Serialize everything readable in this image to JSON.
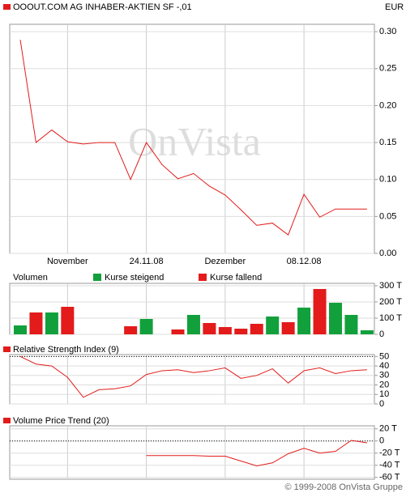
{
  "chart_data": [
    {
      "type": "line",
      "title": "OOOUT.COM AG INHABER-AKTIEN SF -,01",
      "unit": "EUR",
      "watermark": "OnVista",
      "color": "#e31b1b",
      "categories": [
        null,
        null,
        null,
        "November",
        null,
        null,
        null,
        null,
        "24.11.08",
        null,
        null,
        null,
        null,
        "Dezember",
        null,
        null,
        null,
        null,
        "08.12.08",
        null,
        null,
        null,
        null
      ],
      "values": [
        0.289,
        0.15,
        0.167,
        0.151,
        0.148,
        0.15,
        0.15,
        0.1,
        0.15,
        0.12,
        0.101,
        0.108,
        0.091,
        0.079,
        0.059,
        0.038,
        0.041,
        0.025,
        0.08,
        0.049,
        0.06,
        0.06,
        0.06
      ],
      "ylim": [
        0,
        0.31
      ],
      "yticks": [
        {
          "value": 0,
          "label": "0.00"
        },
        0.05,
        {
          "value": 0.1,
          "label": "0.10"
        },
        0.15,
        {
          "value": 0.2,
          "label": "0.20"
        },
        0.25,
        {
          "value": 0.3,
          "label": "0.30"
        }
      ],
      "grid": true
    },
    {
      "type": "bar",
      "title": "Volumen",
      "series": [
        {
          "name": "Kurse steigend",
          "color": "#12a03c",
          "values": [
            55,
            null,
            135,
            null,
            null,
            null,
            null,
            null,
            95,
            null,
            null,
            120,
            null,
            null,
            null,
            null,
            110,
            null,
            165,
            null,
            195,
            120,
            25
          ]
        },
        {
          "name": "Kurse fallend",
          "color": "#e31b1b",
          "values": [
            null,
            135,
            null,
            170,
            null,
            null,
            null,
            50,
            null,
            null,
            30,
            null,
            70,
            45,
            35,
            65,
            null,
            75,
            null,
            280,
            null,
            null,
            null
          ]
        }
      ],
      "ylim": [
        0,
        315
      ],
      "yticks": [
        0,
        {
          "value": 100,
          "label": "100 T"
        },
        {
          "value": 200,
          "label": "200 T"
        },
        {
          "value": 300,
          "label": "300 T"
        }
      ],
      "grid": true
    },
    {
      "type": "line",
      "title": "Relative Strength Index (9)",
      "color": "#e31b1b",
      "values": [
        50,
        42,
        40,
        28,
        7,
        15,
        16,
        19,
        31,
        35,
        36,
        33,
        35,
        38,
        27,
        30,
        37,
        22,
        35,
        38,
        32,
        35,
        36
      ],
      "ylim": [
        0,
        52
      ],
      "yticks": [
        0,
        10,
        20,
        30,
        40,
        50
      ],
      "ref_lines": [
        50
      ],
      "grid": true
    },
    {
      "type": "line",
      "title": "Volume Price Trend (20)",
      "color": "#e31b1b",
      "values": [
        null,
        null,
        null,
        null,
        null,
        null,
        null,
        null,
        -24,
        -24,
        -24,
        -24,
        -25,
        -25,
        -33,
        -41,
        -36,
        -21,
        -12,
        -20,
        -17,
        1,
        -3
      ],
      "ylim": [
        -63,
        25
      ],
      "yticks": [
        {
          "value": 20,
          "label": "20 T"
        },
        0,
        {
          "value": -20,
          "label": "-20 T"
        },
        {
          "value": -40,
          "label": "-40 T"
        },
        {
          "value": -60,
          "label": "-60 T"
        }
      ],
      "ref_lines": [
        0
      ],
      "grid": true
    }
  ],
  "footer": "© 1999-2008 OnVista Gruppe"
}
